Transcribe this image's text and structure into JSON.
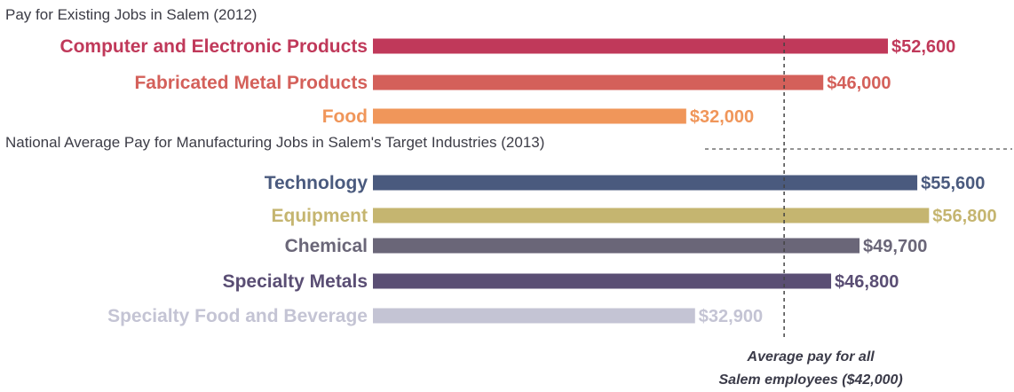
{
  "chart_data": {
    "type": "bar",
    "orientation": "horizontal",
    "groups": [
      {
        "title": "Pay for Existing Jobs in Salem (2012)",
        "bars": [
          {
            "category": "Computer and Electronic Products",
            "value": 52600,
            "label": "$52,600",
            "color": "#c0395a"
          },
          {
            "category": "Fabricated Metal Products",
            "value": 46000,
            "label": "$46,000",
            "color": "#d4605a"
          },
          {
            "category": "Food",
            "value": 32000,
            "label": "$32,000",
            "color": "#f0965a"
          }
        ]
      },
      {
        "title": "National Average Pay for Manufacturing Jobs in Salem's Target Industries (2013)",
        "bars": [
          {
            "category": "Technology",
            "value": 55600,
            "label": "$55,600",
            "color": "#4a5a7e"
          },
          {
            "category": "Equipment",
            "value": 56800,
            "label": "$56,800",
            "color": "#c5b570"
          },
          {
            "category": "Chemical",
            "value": 49700,
            "label": "$49,700",
            "color": "#6a6678"
          },
          {
            "category": "Specialty Metals",
            "value": 46800,
            "label": "$46,800",
            "color": "#5a4e74"
          },
          {
            "category": "Specialty Food and Beverage",
            "value": 32900,
            "label": "$32,900",
            "color": "#c4c4d4"
          }
        ]
      }
    ],
    "reference_line": {
      "value": 42000,
      "label_lines": [
        "Average pay for all",
        "Salem employees ($42,000)"
      ],
      "color": "#444444"
    },
    "xlim": [
      0,
      58000
    ],
    "grid": false
  }
}
